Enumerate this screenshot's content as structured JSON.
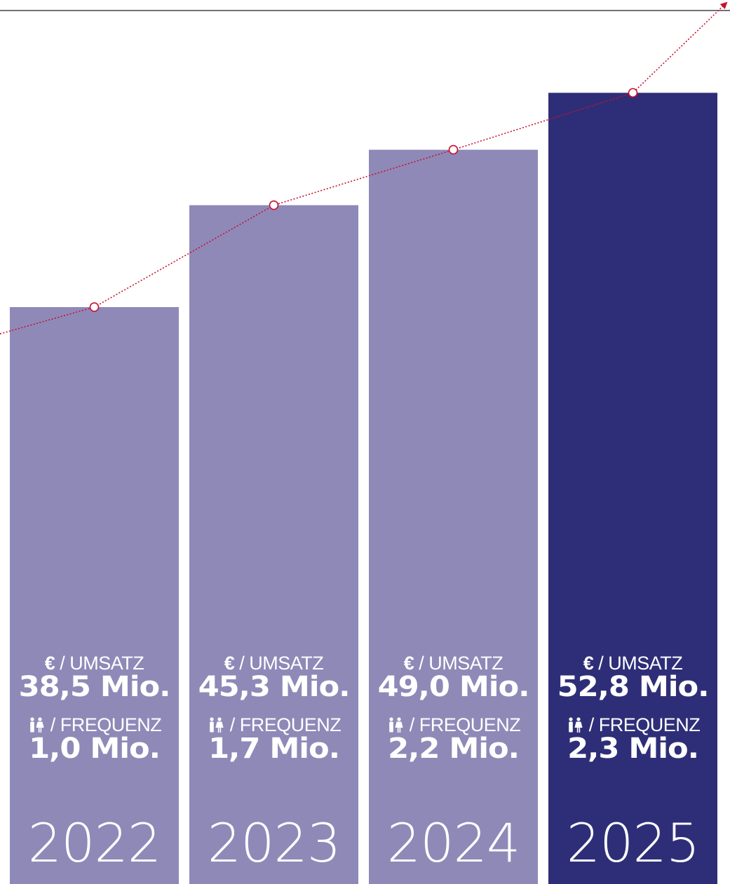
{
  "chart_data": {
    "type": "bar",
    "categories": [
      "2022",
      "2023",
      "2024",
      "2025"
    ],
    "series": [
      {
        "values": [
          38.5,
          45.3,
          49.0,
          52.8
        ]
      }
    ],
    "trend_line": {
      "style": "dotted",
      "arrow": true,
      "color": "#c8102e"
    },
    "bar_colors": [
      "#8f89b8",
      "#8f89b8",
      "#8f89b8",
      "#2e2e78"
    ],
    "ylim": [
      0,
      58
    ],
    "grid": false,
    "bars": [
      {
        "year": "2022",
        "umsatz_label_symbol": "€",
        "umsatz_label": " / UMSATZ",
        "umsatz_value": "38,5 Mio.",
        "frequenz_icon": "people-icon",
        "frequenz_label": " / FREQUENZ",
        "frequenz_value": "1,0 Mio."
      },
      {
        "year": "2023",
        "umsatz_label_symbol": "€",
        "umsatz_label": " / UMSATZ",
        "umsatz_value": "45,3 Mio.",
        "frequenz_icon": "people-icon",
        "frequenz_label": " / FREQUENZ",
        "frequenz_value": "1,7 Mio."
      },
      {
        "year": "2024",
        "umsatz_label_symbol": "€",
        "umsatz_label": " / UMSATZ",
        "umsatz_value": "49,0 Mio.",
        "frequenz_icon": "people-icon",
        "frequenz_label": " / FREQUENZ",
        "frequenz_value": "2,2 Mio."
      },
      {
        "year": "2025",
        "umsatz_label_symbol": "€",
        "umsatz_label": " / UMSATZ",
        "umsatz_value": "52,8 Mio.",
        "frequenz_icon": "people-icon",
        "frequenz_label": " / FREQUENZ",
        "frequenz_value": "2,3 Mio."
      }
    ]
  }
}
